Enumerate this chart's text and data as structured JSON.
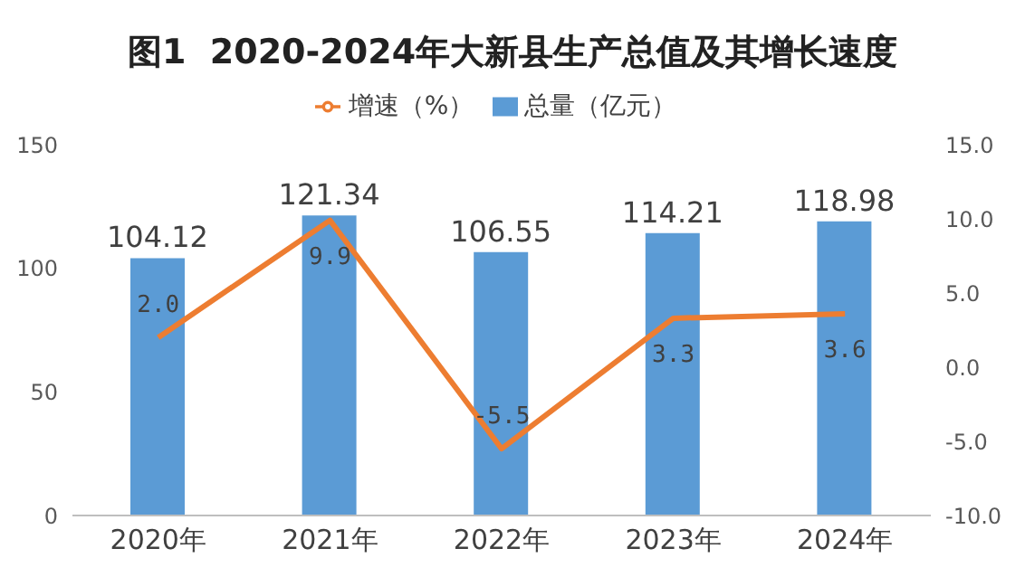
{
  "chart_data": {
    "type": "bar",
    "title": "图1  2020-2024年大新县生产总值及其增长速度",
    "categories": [
      "2020年",
      "2021年",
      "2022年",
      "2023年",
      "2024年"
    ],
    "series": [
      {
        "name": "总量（亿元）",
        "color": "#5b9bd5",
        "values": [
          104.12,
          121.34,
          106.55,
          114.21,
          118.98
        ],
        "value_labels": [
          "104.12",
          "121.34",
          "106.55",
          "114.21",
          "118.98"
        ]
      },
      {
        "name": "增速（%）",
        "type": "line",
        "axis": "y2",
        "color": "#ed7d31",
        "values": [
          2.0,
          9.9,
          -5.5,
          3.3,
          3.6
        ],
        "value_labels": [
          "2.0",
          "9.9",
          "-5.5",
          "3.3",
          "3.6"
        ]
      }
    ],
    "ylim": [
      0,
      150
    ],
    "yticks": [
      0,
      50,
      100,
      150
    ],
    "y2lim": [
      -10,
      15
    ],
    "y2ticks": [
      {
        "value": -10,
        "label": "-10.0"
      },
      {
        "value": -5,
        "label": "-5.0"
      },
      {
        "value": 0,
        "label": "0.0"
      },
      {
        "value": 5,
        "label": "5.0"
      },
      {
        "value": 10,
        "label": "10.0"
      },
      {
        "value": 15,
        "label": "15.0"
      }
    ],
    "legend": "top",
    "marker": "none"
  }
}
